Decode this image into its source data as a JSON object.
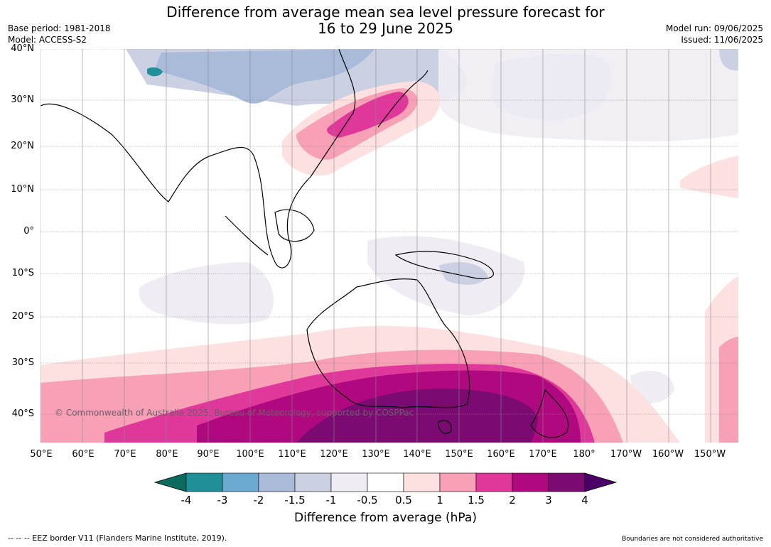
{
  "title_line1": "Difference from average mean sea level pressure forecast for",
  "title_line2": "16 to 29 June 2025",
  "meta_left": {
    "base_period": "Base period: 1981-2018",
    "model": "Model: ACCESS-S2"
  },
  "meta_right": {
    "model_run": "Model run: 09/06/2025",
    "issued": "Issued: 11/06/2025"
  },
  "lat_labels": [
    "40°N",
    "30°N",
    "20°N",
    "10°N",
    "0°",
    "10°S",
    "20°S",
    "30°S",
    "40°S"
  ],
  "lon_labels": [
    "50°E",
    "60°E",
    "70°E",
    "80°E",
    "90°E",
    "100°E",
    "110°E",
    "120°E",
    "130°E",
    "140°E",
    "150°E",
    "160°E",
    "170°E",
    "180°",
    "170°W",
    "160°W",
    "150°W"
  ],
  "copyright": "© Commonwealth of Australia 2025, Bureau of Meteorology, supported by COSPPac",
  "colorbar": {
    "ticks": [
      "-4",
      "-3",
      "-2",
      "-1.5",
      "-1",
      "-0.5",
      "0.5",
      "1",
      "1.5",
      "2",
      "3",
      "4"
    ],
    "colors": [
      "#0b6b5e",
      "#1f8f99",
      "#6aa9d0",
      "#a9bbd9",
      "#ccd0e3",
      "#efecf3",
      "#ffffff",
      "#fde0e0",
      "#f8a0b6",
      "#e0389a",
      "#b0097f",
      "#7b0a73",
      "#4a0066"
    ],
    "label": "Difference from average (hPa)"
  },
  "footer_left": "--  --  -- EEZ border V11 (Flanders Marine Institute, 2019).",
  "footer_right": "Boundaries are not considered authoritative"
}
